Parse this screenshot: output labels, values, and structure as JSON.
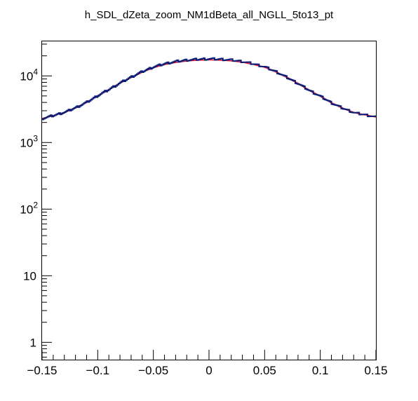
{
  "chart_data": {
    "type": "line",
    "title": "h_SDL_dZeta_zoom_NM1dBeta_all_NGLL_5to13_pt",
    "xlabel": "",
    "ylabel": "",
    "xlim": [
      -0.15,
      0.15
    ],
    "ylim": [
      0.55,
      33000
    ],
    "yscale": "log",
    "grid": false,
    "legend": "none",
    "x_ticks": [
      {
        "value": -0.15,
        "label": "−0.15"
      },
      {
        "value": -0.1,
        "label": "−0.1"
      },
      {
        "value": -0.05,
        "label": "−0.05"
      },
      {
        "value": 0,
        "label": "0"
      },
      {
        "value": 0.05,
        "label": "0.05"
      },
      {
        "value": 0.1,
        "label": "0.1"
      },
      {
        "value": 0.15,
        "label": "0.15"
      }
    ],
    "y_ticks": [
      {
        "value": 1,
        "base": "1",
        "exp": ""
      },
      {
        "value": 10,
        "base": "10",
        "exp": ""
      },
      {
        "value": 100,
        "base": "10",
        "exp": "2"
      },
      {
        "value": 1000,
        "base": "10",
        "exp": "3"
      },
      {
        "value": 10000,
        "base": "10",
        "exp": "4"
      }
    ],
    "series": [
      {
        "color": "#0a1e78",
        "x": [
          -0.15,
          -0.14,
          -0.13,
          -0.12,
          -0.11,
          -0.1,
          -0.09,
          -0.08,
          -0.07,
          -0.06,
          -0.05,
          -0.04,
          -0.03,
          -0.02,
          -0.01,
          0.0,
          0.01,
          0.02,
          0.03,
          0.04,
          0.05,
          0.06,
          0.07,
          0.08,
          0.09,
          0.1,
          0.11,
          0.12,
          0.13,
          0.14,
          0.15
        ],
        "y": [
          2300,
          2550,
          2850,
          3350,
          4050,
          5100,
          6300,
          7900,
          9700,
          11700,
          13700,
          15300,
          16500,
          17300,
          17800,
          18000,
          17800,
          17300,
          16400,
          15100,
          13600,
          11500,
          9400,
          7600,
          6000,
          4900,
          3900,
          3250,
          2800,
          2600,
          2400
        ]
      },
      {
        "color": "#e8132c",
        "x": [
          -0.15,
          -0.14,
          -0.13,
          -0.12,
          -0.11,
          -0.1,
          -0.09,
          -0.08,
          -0.07,
          -0.06,
          -0.05,
          -0.04,
          -0.03,
          -0.02,
          -0.01,
          0.0,
          0.01,
          0.02,
          0.03,
          0.04,
          0.05,
          0.06,
          0.07,
          0.08,
          0.09,
          0.1,
          0.11,
          0.12,
          0.13,
          0.14,
          0.15
        ],
        "y": [
          2300,
          2550,
          2850,
          3350,
          4050,
          5100,
          6300,
          7900,
          9600,
          11500,
          13400,
          14900,
          16000,
          16800,
          17200,
          17400,
          17200,
          16800,
          16000,
          14800,
          13400,
          11400,
          9400,
          7600,
          6000,
          4900,
          3900,
          3250,
          2800,
          2600,
          2400
        ]
      }
    ]
  }
}
